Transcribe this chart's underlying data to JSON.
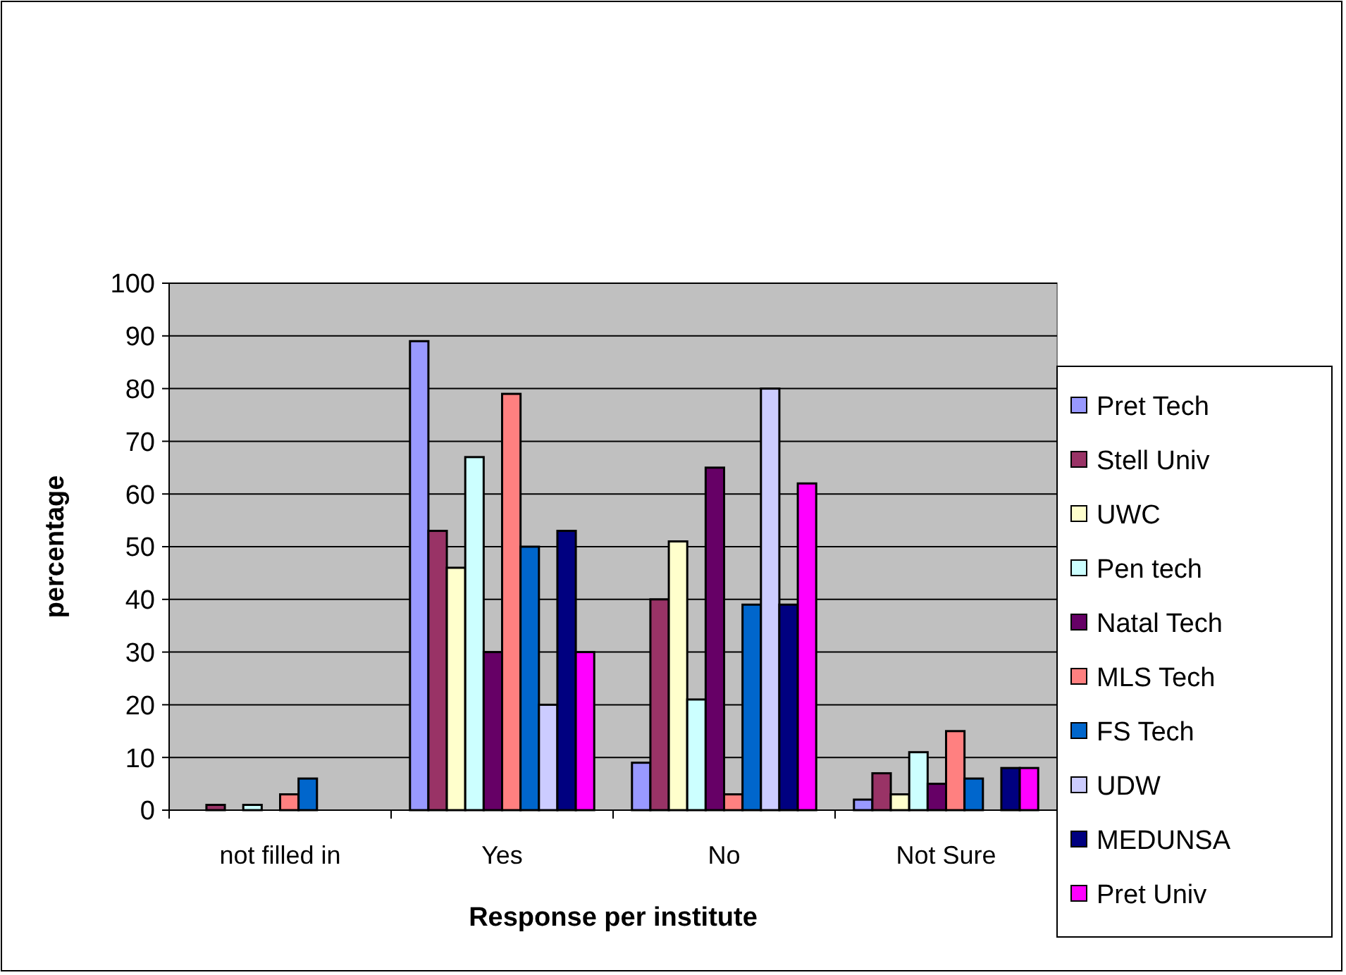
{
  "chart_data": {
    "type": "bar",
    "xlabel": "Response per institute",
    "ylabel": "percentage",
    "categories": [
      "not filled in",
      "Yes",
      "No",
      "Not Sure"
    ],
    "ylim": [
      0,
      100
    ],
    "yticks": [
      0,
      10,
      20,
      30,
      40,
      50,
      60,
      70,
      80,
      90,
      100
    ],
    "grid": "y",
    "legend": "right",
    "series": [
      {
        "name": "Pret Tech",
        "color": "#9999ff",
        "values": [
          0,
          89,
          9,
          2
        ]
      },
      {
        "name": "Stell Univ",
        "color": "#993366",
        "values": [
          1,
          53,
          40,
          7
        ]
      },
      {
        "name": "UWC",
        "color": "#ffffcc",
        "values": [
          0,
          46,
          51,
          3
        ]
      },
      {
        "name": "Pen tech",
        "color": "#ccffff",
        "values": [
          1,
          67,
          21,
          11
        ]
      },
      {
        "name": "Natal Tech",
        "color": "#660066",
        "values": [
          0,
          30,
          65,
          5
        ]
      },
      {
        "name": "MLS Tech",
        "color": "#ff8080",
        "values": [
          3,
          79,
          3,
          15
        ]
      },
      {
        "name": "FS Tech",
        "color": "#0066cc",
        "values": [
          6,
          50,
          39,
          6
        ]
      },
      {
        "name": "UDW",
        "color": "#ccccff",
        "values": [
          0,
          20,
          80,
          0
        ]
      },
      {
        "name": "MEDUNSA",
        "color": "#000080",
        "values": [
          0,
          53,
          39,
          8
        ]
      },
      {
        "name": "Pret Univ",
        "color": "#ff00ff",
        "values": [
          0,
          30,
          62,
          8
        ]
      }
    ]
  }
}
